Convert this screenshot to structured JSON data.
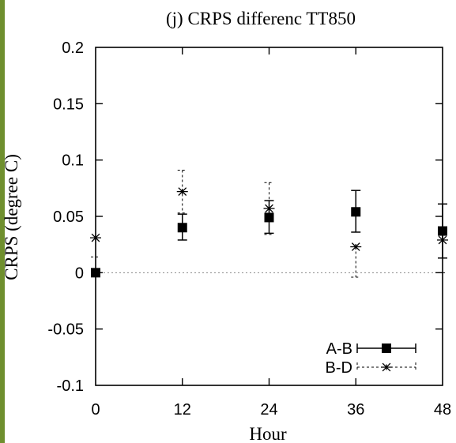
{
  "chart_data": {
    "type": "scatter",
    "title": "(j)   CRPS differenc TT850",
    "xlabel": "Hour",
    "ylabel": "CRPS (degree C)",
    "x": [
      0,
      12,
      24,
      36,
      48
    ],
    "x_tick_labels": [
      "0",
      "12",
      "24",
      "36",
      "48"
    ],
    "y_tick_labels": [
      "0.2",
      "0.15",
      "0.1",
      "0.05",
      "0",
      "-0.05",
      "-0.1"
    ],
    "xlim": [
      0,
      48
    ],
    "ylim": [
      -0.1,
      0.2
    ],
    "zero_reference_line": true,
    "grid": false,
    "legend_position": "bottom-right",
    "series": [
      {
        "name": "A-B",
        "marker": "filled-square",
        "error_bar_style": "solid",
        "color": "#000000",
        "values": [
          0.0,
          0.04,
          0.049,
          0.054,
          0.037
        ],
        "error_low": [
          null,
          0.029,
          0.035,
          0.036,
          0.013
        ],
        "error_high": [
          null,
          0.052,
          0.064,
          0.073,
          0.061
        ]
      },
      {
        "name": "B-D",
        "marker": "asterisk",
        "error_bar_style": "dashed",
        "color": "#000000",
        "values": [
          0.031,
          0.072,
          0.057,
          0.023,
          0.029
        ],
        "error_low": [
          0.014,
          0.053,
          0.034,
          -0.004,
          0.0
        ],
        "error_high": [
          null,
          0.091,
          0.08,
          null,
          null
        ]
      }
    ]
  }
}
